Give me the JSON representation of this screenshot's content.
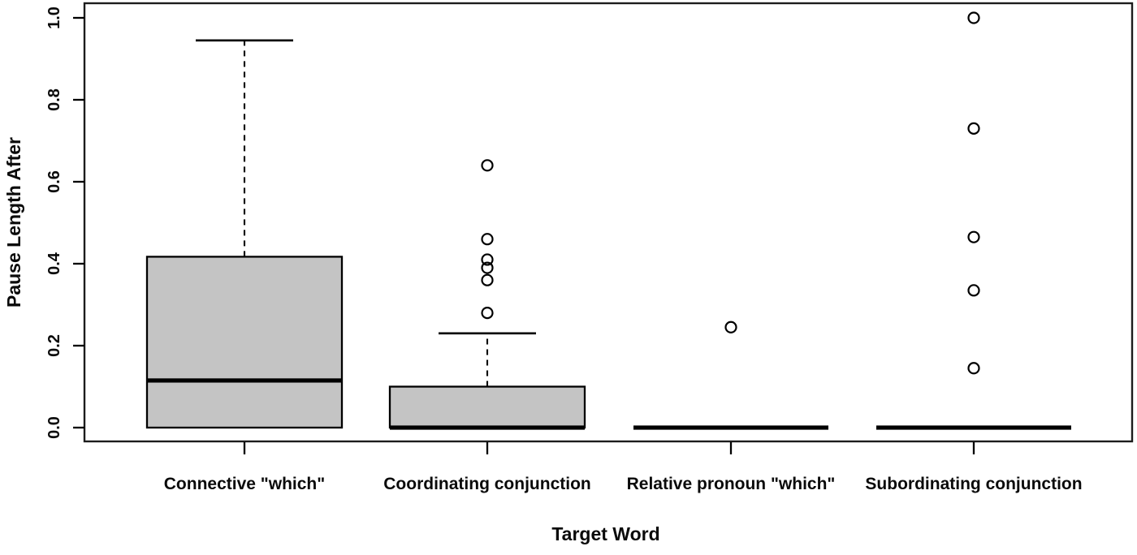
{
  "figure": {
    "background": "#ffffff",
    "frame_color": "#1c1c1c",
    "line_color": "#000000",
    "box_fill": "#c4c4c4"
  },
  "chart_data": {
    "type": "boxplot",
    "title": "",
    "xlabel": "Target Word",
    "ylabel": "Pause Length After",
    "ylim": [
      0.0,
      1.0
    ],
    "yticks": [
      0.0,
      0.2,
      0.4,
      0.6,
      0.8,
      1.0
    ],
    "ytick_labels": [
      "0.0",
      "0.2",
      "0.4",
      "0.6",
      "0.8",
      "1.0"
    ],
    "grid": false,
    "legend": "none",
    "categories": [
      "Connective \"which\"",
      "Coordinating conjunction",
      "Relative pronoun \"which\"",
      "Subordinating conjunction"
    ],
    "series": [
      {
        "name": "Connective \"which\"",
        "whisker_low": 0.0,
        "q1": 0.0,
        "median": 0.115,
        "q3": 0.417,
        "whisker_high": 0.945,
        "outliers": []
      },
      {
        "name": "Coordinating conjunction",
        "whisker_low": 0.0,
        "q1": 0.0,
        "median": 0.0,
        "q3": 0.1,
        "whisker_high": 0.23,
        "outliers": [
          0.64,
          0.46,
          0.41,
          0.39,
          0.36,
          0.28
        ]
      },
      {
        "name": "Relative pronoun \"which\"",
        "whisker_low": 0.0,
        "q1": 0.0,
        "median": 0.0,
        "q3": 0.0,
        "whisker_high": 0.0,
        "outliers": [
          0.245
        ]
      },
      {
        "name": "Subordinating conjunction",
        "whisker_low": 0.0,
        "q1": 0.0,
        "median": 0.0,
        "q3": 0.0,
        "whisker_high": 0.0,
        "outliers": [
          1.0,
          0.73,
          0.465,
          0.335,
          0.145
        ]
      }
    ]
  }
}
